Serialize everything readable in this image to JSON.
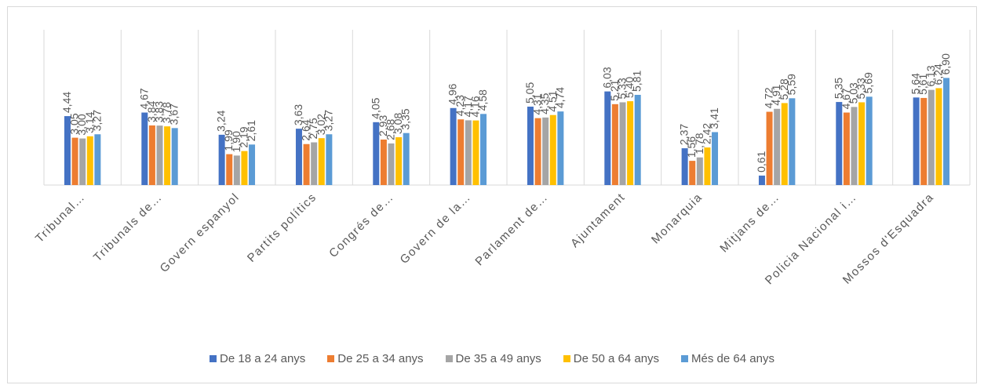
{
  "chart_data": {
    "type": "bar",
    "categories": [
      "Tribunal…",
      "Tribunals de…",
      "Govern espanyol",
      "Partits polítics",
      "Congrés de…",
      "Govern de la…",
      "Parlament de…",
      "Ajuntament",
      "Monarquia",
      "Mitjans de…",
      "Policia Nacional i…",
      "Mossos d'Esquadra"
    ],
    "series": [
      {
        "name": "De 18 a 24 anys",
        "color": "#4472c4",
        "values": [
          4.44,
          4.67,
          3.24,
          3.63,
          4.05,
          4.96,
          5.05,
          6.03,
          2.37,
          0.61,
          5.35,
          5.64
        ]
      },
      {
        "name": "De 25 a 34 anys",
        "color": "#ed7d31",
        "values": [
          3.05,
          3.84,
          1.99,
          2.64,
          2.93,
          4.23,
          4.31,
          5.21,
          1.56,
          4.72,
          4.67,
          5.61
        ]
      },
      {
        "name": "De 35 a 49 anys",
        "color": "#a5a5a5",
        "values": [
          3.0,
          3.83,
          1.9,
          2.75,
          2.68,
          4.17,
          4.35,
          5.33,
          1.78,
          4.91,
          5.03,
          6.13
        ]
      },
      {
        "name": "De 50 a 64 anys",
        "color": "#ffc000",
        "values": [
          3.14,
          3.78,
          2.19,
          3.02,
          3.08,
          4.16,
          4.51,
          5.4,
          2.42,
          5.28,
          5.33,
          6.24
        ]
      },
      {
        "name": "Més de 64 anys",
        "color": "#5b9bd5",
        "values": [
          3.27,
          3.67,
          2.61,
          3.27,
          3.35,
          4.58,
          4.74,
          5.81,
          3.41,
          5.59,
          5.69,
          6.9
        ]
      }
    ],
    "ylim": [
      0,
      10
    ],
    "grid": false,
    "legend_position": "bottom"
  }
}
